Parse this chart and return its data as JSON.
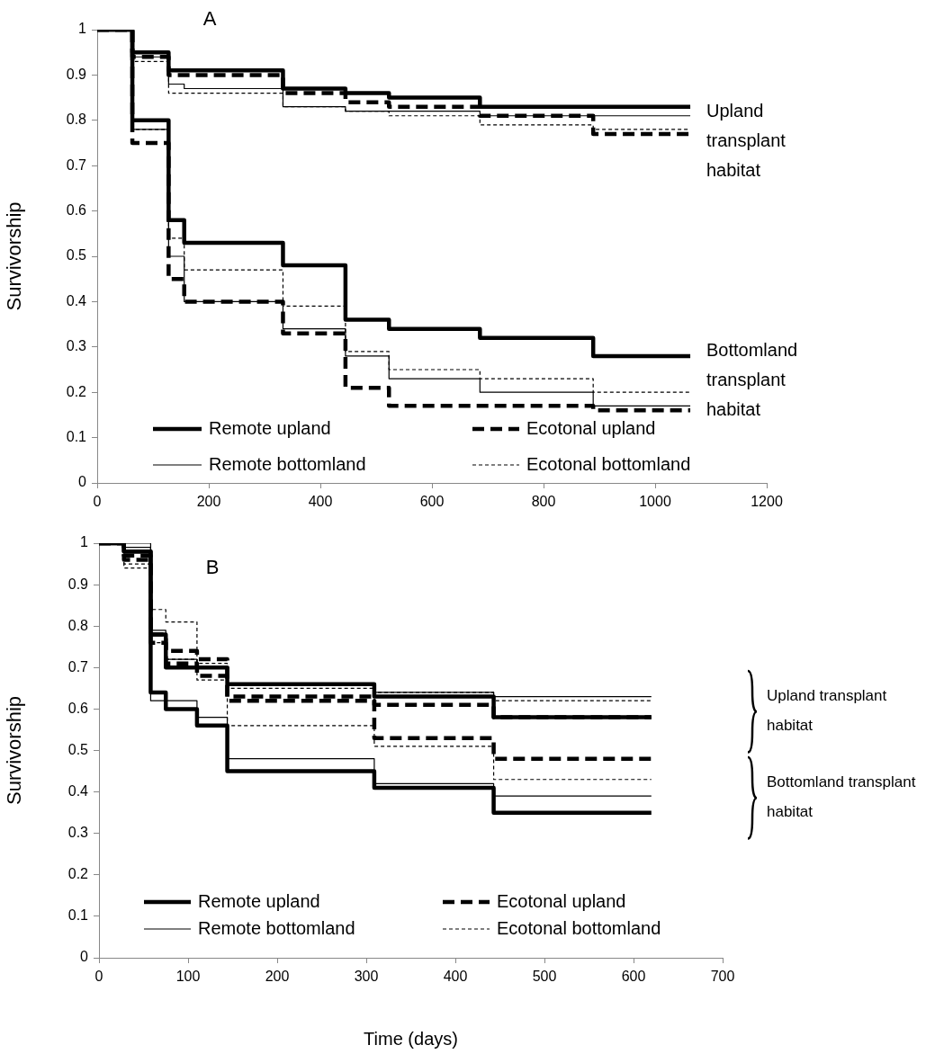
{
  "chart_data": [
    {
      "type": "step",
      "title": "A",
      "ylabel": "Survivorship",
      "xlim": [
        0,
        1200
      ],
      "xticks": [
        0,
        200,
        400,
        600,
        800,
        1000,
        1200
      ],
      "ylim": [
        0,
        1
      ],
      "yticks": [
        0,
        0.1,
        0.2,
        0.3,
        0.4,
        0.5,
        0.6,
        0.7,
        0.8,
        0.9,
        1
      ],
      "legend": "bottom",
      "marker": "none",
      "annotations": [
        "Upland transplant habitat",
        "Bottomland transplant habitat"
      ],
      "series": [
        {
          "name": "Remote upland",
          "color": "#000000",
          "line_style": "solid",
          "x": [
            0,
            63,
            128,
            156,
            333,
            445,
            523,
            686,
            889,
            1063
          ],
          "values": [
            1,
            0.95,
            0.91,
            0.91,
            0.87,
            0.86,
            0.85,
            0.83,
            0.83,
            0.83
          ]
        },
        {
          "name": "Ecotonal upland",
          "color": "#000000",
          "line_style": "dashed",
          "x": [
            0,
            63,
            128,
            156,
            333,
            445,
            523,
            686,
            889,
            1063
          ],
          "values": [
            1,
            0.94,
            0.9,
            0.9,
            0.86,
            0.84,
            0.83,
            0.81,
            0.77,
            0.77
          ]
        },
        {
          "name": "Remote bottomland",
          "color": "#000000",
          "line_style": "solid",
          "x": [
            0,
            63,
            128,
            156,
            333,
            445,
            523,
            686,
            889,
            1063
          ],
          "values": [
            1,
            0.94,
            0.88,
            0.87,
            0.83,
            0.82,
            0.82,
            0.81,
            0.81,
            0.81
          ]
        },
        {
          "name": "Ecotonal bottomland",
          "color": "#000000",
          "line_style": "dashed",
          "x": [
            0,
            63,
            128,
            156,
            333,
            445,
            523,
            686,
            889,
            1063
          ],
          "values": [
            1,
            0.93,
            0.86,
            0.86,
            0.83,
            0.82,
            0.81,
            0.79,
            0.78,
            0.78
          ]
        },
        {
          "color": "#000000",
          "line_style": "solid",
          "x": [
            0,
            63,
            128,
            156,
            333,
            445,
            523,
            686,
            889,
            1063
          ],
          "values": [
            1,
            0.8,
            0.58,
            0.53,
            0.48,
            0.36,
            0.34,
            0.32,
            0.28,
            0.28
          ]
        },
        {
          "color": "#000000",
          "line_style": "dashed",
          "x": [
            0,
            63,
            128,
            156,
            333,
            445,
            523,
            686,
            889,
            1063
          ],
          "values": [
            1,
            0.75,
            0.45,
            0.4,
            0.33,
            0.21,
            0.17,
            0.17,
            0.16,
            0.16
          ]
        },
        {
          "color": "#000000",
          "line_style": "solid",
          "x": [
            0,
            63,
            128,
            156,
            333,
            445,
            523,
            686,
            889,
            1063
          ],
          "values": [
            1,
            0.78,
            0.5,
            0.4,
            0.34,
            0.28,
            0.23,
            0.2,
            0.17,
            0.17
          ]
        },
        {
          "color": "#000000",
          "line_style": "dashed",
          "x": [
            0,
            63,
            128,
            156,
            333,
            445,
            523,
            686,
            889,
            1063
          ],
          "values": [
            1,
            0.78,
            0.54,
            0.47,
            0.39,
            0.29,
            0.25,
            0.23,
            0.2,
            0.2
          ]
        }
      ]
    },
    {
      "type": "step",
      "title": "B",
      "ylabel": "Survivorship",
      "xlabel": "Time (days)",
      "xlim": [
        0,
        700
      ],
      "xticks": [
        0,
        100,
        200,
        300,
        400,
        500,
        600,
        700
      ],
      "ylim": [
        0,
        1
      ],
      "yticks": [
        0,
        0.1,
        0.2,
        0.3,
        0.4,
        0.5,
        0.6,
        0.7,
        0.8,
        0.9,
        1
      ],
      "legend": "bottom",
      "marker": "none",
      "annotations": [
        "Upland transplant habitat",
        "Bottomland transplant habitat"
      ],
      "series": [
        {
          "name": "Remote upland",
          "color": "#000000",
          "line_style": "solid",
          "x": [
            0,
            28,
            58,
            75,
            110,
            144,
            309,
            443,
            620
          ],
          "values": [
            1,
            0.98,
            0.78,
            0.7,
            0.7,
            0.66,
            0.63,
            0.58,
            0.58
          ]
        },
        {
          "name": "Ecotonal upland",
          "color": "#000000",
          "line_style": "dashed",
          "x": [
            0,
            28,
            58,
            75,
            110,
            144,
            309,
            443,
            620
          ],
          "values": [
            1,
            0.97,
            0.78,
            0.74,
            0.72,
            0.63,
            0.61,
            0.58,
            0.58
          ]
        },
        {
          "name": "Remote bottomland",
          "color": "#000000",
          "line_style": "solid",
          "x": [
            0,
            28,
            58,
            75,
            110,
            144,
            309,
            443,
            620
          ],
          "values": [
            1,
            1,
            0.79,
            0.72,
            0.7,
            0.66,
            0.64,
            0.63,
            0.63
          ]
        },
        {
          "name": "Ecotonal bottomland",
          "color": "#000000",
          "line_style": "dashed",
          "x": [
            0,
            28,
            58,
            75,
            110,
            144,
            309,
            443,
            620
          ],
          "values": [
            1,
            0.94,
            0.84,
            0.81,
            0.71,
            0.65,
            0.64,
            0.62,
            0.62
          ]
        },
        {
          "color": "#000000",
          "line_style": "solid",
          "x": [
            0,
            28,
            58,
            75,
            110,
            144,
            309,
            443,
            620
          ],
          "values": [
            1,
            0.98,
            0.64,
            0.6,
            0.56,
            0.45,
            0.41,
            0.35,
            0.35
          ]
        },
        {
          "color": "#000000",
          "line_style": "dashed",
          "x": [
            0,
            28,
            58,
            75,
            110,
            144,
            309,
            443,
            620
          ],
          "values": [
            1,
            0.96,
            0.76,
            0.71,
            0.68,
            0.62,
            0.53,
            0.48,
            0.48
          ]
        },
        {
          "color": "#000000",
          "line_style": "solid",
          "x": [
            0,
            28,
            58,
            75,
            110,
            144,
            309,
            443,
            620
          ],
          "values": [
            1,
            0.99,
            0.62,
            0.62,
            0.58,
            0.48,
            0.42,
            0.39,
            0.39
          ]
        },
        {
          "color": "#000000",
          "line_style": "dashed",
          "x": [
            0,
            28,
            58,
            75,
            110,
            144,
            309,
            443,
            620
          ],
          "values": [
            1,
            0.95,
            0.76,
            0.72,
            0.67,
            0.56,
            0.51,
            0.43,
            0.43
          ]
        }
      ]
    }
  ]
}
